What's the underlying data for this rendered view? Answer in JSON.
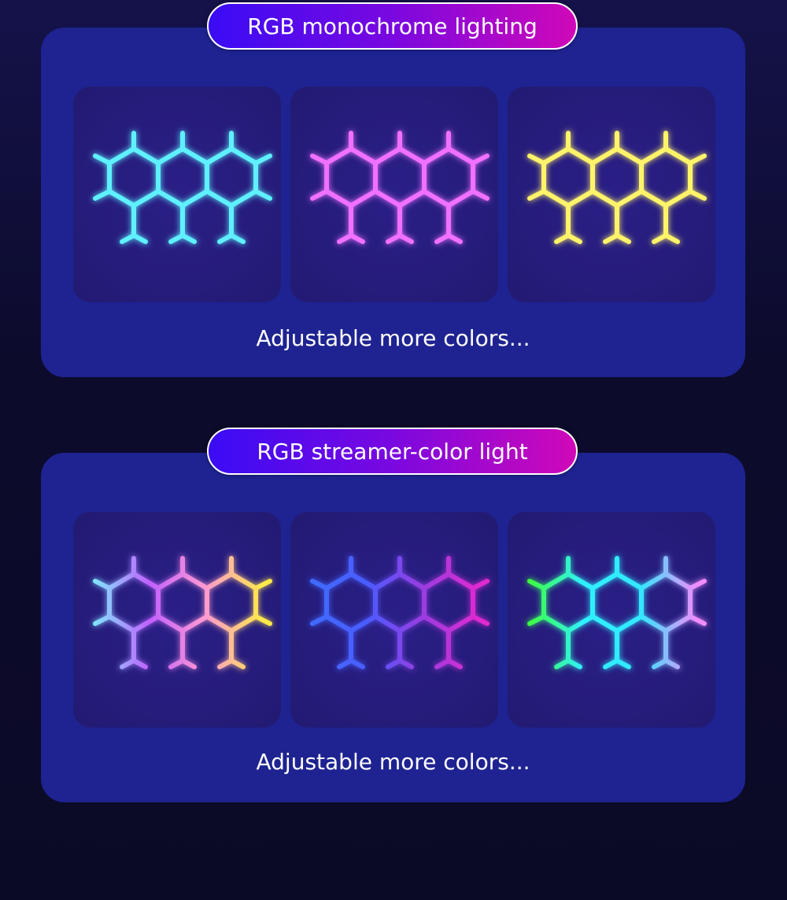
{
  "sections": [
    {
      "title": "RGB monochrome lighting",
      "caption": "Adjustable more colors...",
      "tiles": [
        {
          "colors": [
            "#5ef0ff",
            "#5ef0ff"
          ]
        },
        {
          "colors": [
            "#f070ff",
            "#f070ff"
          ]
        },
        {
          "colors": [
            "#fff36a",
            "#fff36a"
          ]
        }
      ]
    },
    {
      "title": "RGB streamer-color light",
      "caption": "Adjustable more colors...",
      "tiles": [
        {
          "colors": [
            "#7fe8ff",
            "#c060ff",
            "#ff9ad0",
            "#ffe94a"
          ]
        },
        {
          "colors": [
            "#3f6cff",
            "#4a5cff",
            "#9a3ce0",
            "#e02ad0"
          ]
        },
        {
          "colors": [
            "#3dff3a",
            "#2ff0ff",
            "#30e8ff",
            "#f08cff"
          ]
        }
      ]
    }
  ]
}
